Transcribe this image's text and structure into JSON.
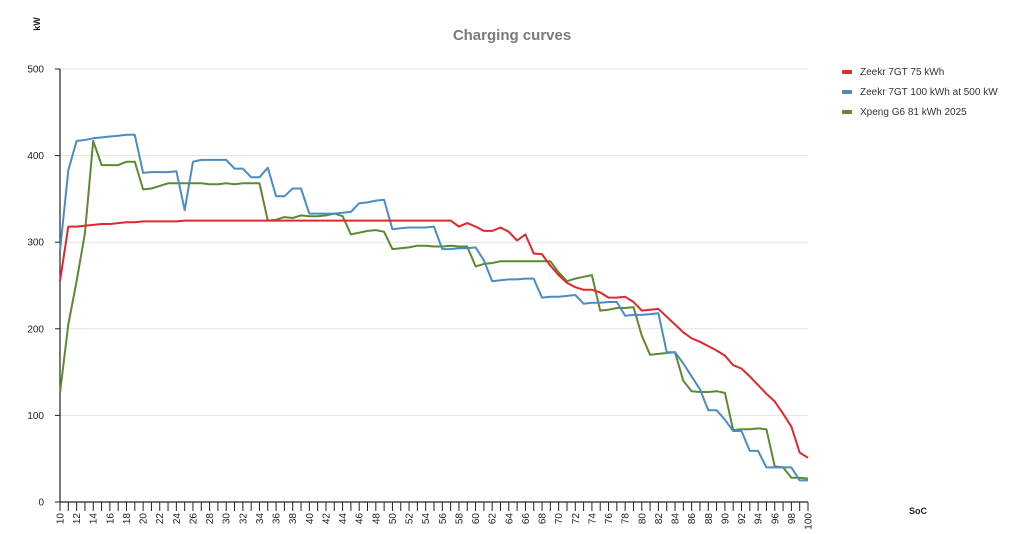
{
  "chart_data": {
    "type": "line",
    "title": "Charging curves",
    "xlabel": "SoC",
    "ylabel": "kW",
    "xlim": [
      10,
      100
    ],
    "ylim": [
      0,
      500
    ],
    "yticks": [
      0,
      100,
      200,
      300,
      400,
      500
    ],
    "xticks": [
      10,
      12,
      14,
      16,
      18,
      20,
      22,
      24,
      26,
      28,
      30,
      32,
      34,
      36,
      38,
      40,
      42,
      44,
      46,
      48,
      50,
      52,
      54,
      56,
      58,
      60,
      62,
      64,
      66,
      68,
      70,
      72,
      74,
      76,
      78,
      80,
      82,
      84,
      86,
      88,
      90,
      92,
      94,
      96,
      98,
      100
    ],
    "grid": true,
    "legend_position": "right",
    "series": [
      {
        "name": "Zeekr 7GT 75 kWh",
        "color": "#e3262d",
        "points": [
          [
            10,
            255
          ],
          [
            11,
            318
          ],
          [
            12,
            318
          ],
          [
            13,
            319
          ],
          [
            14,
            320
          ],
          [
            15,
            321
          ],
          [
            16,
            321
          ],
          [
            17,
            322
          ],
          [
            18,
            323
          ],
          [
            19,
            323
          ],
          [
            20,
            324
          ],
          [
            21,
            324
          ],
          [
            22,
            324
          ],
          [
            23,
            324
          ],
          [
            24,
            324
          ],
          [
            25,
            325
          ],
          [
            26,
            325
          ],
          [
            28,
            325
          ],
          [
            30,
            325
          ],
          [
            32,
            325
          ],
          [
            34,
            325
          ],
          [
            36,
            325
          ],
          [
            38,
            325
          ],
          [
            40,
            325
          ],
          [
            42,
            325
          ],
          [
            44,
            325
          ],
          [
            46,
            325
          ],
          [
            48,
            325
          ],
          [
            50,
            325
          ],
          [
            52,
            325
          ],
          [
            54,
            325
          ],
          [
            56,
            325
          ],
          [
            57,
            325
          ],
          [
            58,
            318
          ],
          [
            59,
            322
          ],
          [
            60,
            318
          ],
          [
            61,
            313
          ],
          [
            62,
            313
          ],
          [
            63,
            317
          ],
          [
            64,
            312
          ],
          [
            65,
            302
          ],
          [
            66,
            309
          ],
          [
            67,
            287
          ],
          [
            68,
            286
          ],
          [
            69,
            273
          ],
          [
            70,
            262
          ],
          [
            71,
            253
          ],
          [
            72,
            248
          ],
          [
            73,
            245
          ],
          [
            74,
            245
          ],
          [
            75,
            242
          ],
          [
            76,
            236
          ],
          [
            77,
            236
          ],
          [
            78,
            237
          ],
          [
            79,
            231
          ],
          [
            80,
            221
          ],
          [
            81,
            222
          ],
          [
            82,
            223
          ],
          [
            83,
            214
          ],
          [
            84,
            205
          ],
          [
            85,
            196
          ],
          [
            86,
            189
          ],
          [
            87,
            185
          ],
          [
            88,
            180
          ],
          [
            89,
            175
          ],
          [
            90,
            169
          ],
          [
            91,
            158
          ],
          [
            92,
            154
          ],
          [
            93,
            145
          ],
          [
            94,
            135
          ],
          [
            95,
            125
          ],
          [
            96,
            116
          ],
          [
            97,
            102
          ],
          [
            98,
            87
          ],
          [
            99,
            57
          ],
          [
            100,
            51
          ]
        ]
      },
      {
        "name": "Zeekr 7GT 100 kWh at 500 kW",
        "color": "#4a8cc6",
        "points": [
          [
            10,
            290
          ],
          [
            11,
            383
          ],
          [
            12,
            417
          ],
          [
            13,
            418
          ],
          [
            14,
            420
          ],
          [
            15,
            421
          ],
          [
            16,
            422
          ],
          [
            17,
            423
          ],
          [
            18,
            424
          ],
          [
            19,
            424
          ],
          [
            20,
            380
          ],
          [
            21,
            381
          ],
          [
            22,
            381
          ],
          [
            23,
            381
          ],
          [
            24,
            382
          ],
          [
            25,
            337
          ],
          [
            26,
            393
          ],
          [
            27,
            395
          ],
          [
            28,
            395
          ],
          [
            29,
            395
          ],
          [
            30,
            395
          ],
          [
            31,
            385
          ],
          [
            32,
            385
          ],
          [
            33,
            375
          ],
          [
            34,
            375
          ],
          [
            35,
            386
          ],
          [
            36,
            353
          ],
          [
            37,
            353
          ],
          [
            38,
            362
          ],
          [
            39,
            362
          ],
          [
            40,
            333
          ],
          [
            41,
            333
          ],
          [
            42,
            333
          ],
          [
            43,
            333
          ],
          [
            44,
            334
          ],
          [
            45,
            335
          ],
          [
            46,
            345
          ],
          [
            47,
            346
          ],
          [
            48,
            348
          ],
          [
            49,
            349
          ],
          [
            50,
            315
          ],
          [
            51,
            316
          ],
          [
            52,
            317
          ],
          [
            53,
            317
          ],
          [
            54,
            317
          ],
          [
            55,
            318
          ],
          [
            56,
            292
          ],
          [
            57,
            292
          ],
          [
            58,
            293
          ],
          [
            59,
            293
          ],
          [
            60,
            294
          ],
          [
            61,
            279
          ],
          [
            62,
            255
          ],
          [
            63,
            256
          ],
          [
            64,
            257
          ],
          [
            65,
            257
          ],
          [
            66,
            258
          ],
          [
            67,
            258
          ],
          [
            68,
            236
          ],
          [
            69,
            237
          ],
          [
            70,
            237
          ],
          [
            71,
            238
          ],
          [
            72,
            239
          ],
          [
            73,
            229
          ],
          [
            74,
            230
          ],
          [
            75,
            230
          ],
          [
            76,
            231
          ],
          [
            77,
            231
          ],
          [
            78,
            215
          ],
          [
            79,
            216
          ],
          [
            80,
            216
          ],
          [
            81,
            217
          ],
          [
            82,
            218
          ],
          [
            83,
            173
          ],
          [
            84,
            173
          ],
          [
            85,
            160
          ],
          [
            86,
            145
          ],
          [
            87,
            130
          ],
          [
            88,
            106
          ],
          [
            89,
            106
          ],
          [
            90,
            95
          ],
          [
            91,
            82
          ],
          [
            92,
            82
          ],
          [
            93,
            59
          ],
          [
            94,
            59
          ],
          [
            95,
            40
          ],
          [
            96,
            40
          ],
          [
            97,
            40
          ],
          [
            98,
            40
          ],
          [
            99,
            25
          ],
          [
            100,
            25
          ]
        ]
      },
      {
        "name": "Xpeng G6 81 kWh 2025",
        "color": "#5b8a2f",
        "points": [
          [
            10,
            126
          ],
          [
            11,
            205
          ],
          [
            12,
            255
          ],
          [
            13,
            310
          ],
          [
            14,
            417
          ],
          [
            15,
            389
          ],
          [
            16,
            389
          ],
          [
            17,
            389
          ],
          [
            18,
            393
          ],
          [
            19,
            393
          ],
          [
            20,
            361
          ],
          [
            21,
            362
          ],
          [
            22,
            365
          ],
          [
            23,
            368
          ],
          [
            24,
            368
          ],
          [
            25,
            368
          ],
          [
            26,
            368
          ],
          [
            27,
            368
          ],
          [
            28,
            367
          ],
          [
            29,
            367
          ],
          [
            30,
            368
          ],
          [
            31,
            367
          ],
          [
            32,
            368
          ],
          [
            33,
            368
          ],
          [
            34,
            368
          ],
          [
            35,
            325
          ],
          [
            36,
            326
          ],
          [
            37,
            329
          ],
          [
            38,
            328
          ],
          [
            39,
            331
          ],
          [
            40,
            330
          ],
          [
            41,
            330
          ],
          [
            42,
            331
          ],
          [
            43,
            333
          ],
          [
            44,
            330
          ],
          [
            45,
            309
          ],
          [
            46,
            311
          ],
          [
            47,
            313
          ],
          [
            48,
            314
          ],
          [
            49,
            312
          ],
          [
            50,
            292
          ],
          [
            51,
            293
          ],
          [
            52,
            294
          ],
          [
            53,
            296
          ],
          [
            54,
            296
          ],
          [
            55,
            295
          ],
          [
            56,
            295
          ],
          [
            57,
            296
          ],
          [
            58,
            295
          ],
          [
            59,
            295
          ],
          [
            60,
            272
          ],
          [
            61,
            275
          ],
          [
            62,
            276
          ],
          [
            63,
            278
          ],
          [
            64,
            278
          ],
          [
            65,
            278
          ],
          [
            66,
            278
          ],
          [
            67,
            278
          ],
          [
            68,
            278
          ],
          [
            69,
            278
          ],
          [
            70,
            265
          ],
          [
            71,
            255
          ],
          [
            72,
            258
          ],
          [
            73,
            260
          ],
          [
            74,
            262
          ],
          [
            75,
            221
          ],
          [
            76,
            222
          ],
          [
            77,
            224
          ],
          [
            78,
            224
          ],
          [
            79,
            225
          ],
          [
            80,
            192
          ],
          [
            81,
            170
          ],
          [
            82,
            171
          ],
          [
            83,
            172
          ],
          [
            84,
            173
          ],
          [
            85,
            140
          ],
          [
            86,
            128
          ],
          [
            87,
            127
          ],
          [
            88,
            127
          ],
          [
            89,
            128
          ],
          [
            90,
            126
          ],
          [
            91,
            83
          ],
          [
            92,
            84
          ],
          [
            93,
            84
          ],
          [
            94,
            85
          ],
          [
            95,
            84
          ],
          [
            96,
            41
          ],
          [
            97,
            40
          ],
          [
            98,
            28
          ],
          [
            99,
            28
          ],
          [
            100,
            27
          ]
        ]
      }
    ]
  }
}
